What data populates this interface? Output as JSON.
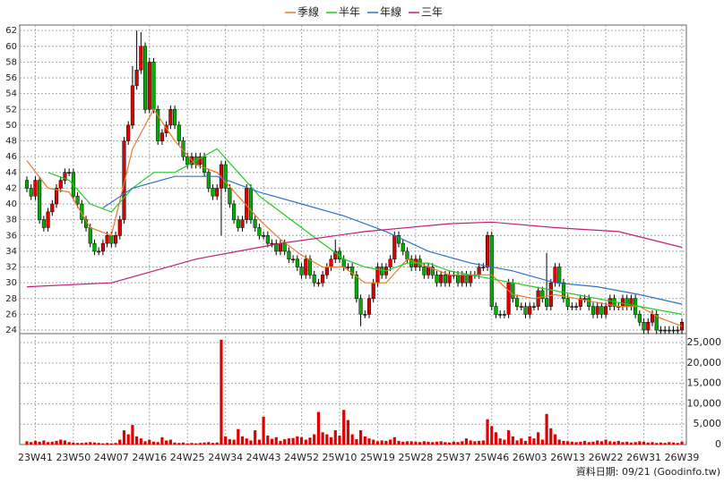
{
  "chart_data": {
    "type": "candlestick",
    "categories": [
      null,
      null,
      "23W41",
      null,
      null,
      null,
      null,
      null,
      null,
      null,
      null,
      "23W50",
      null,
      null,
      null,
      null,
      null,
      null,
      null,
      null,
      "24W07",
      null,
      null,
      null,
      null,
      null,
      null,
      null,
      null,
      "24W16",
      null,
      null,
      null,
      null,
      null,
      null,
      null,
      null,
      "24W25",
      null,
      null,
      null,
      null,
      null,
      null,
      null,
      null,
      "24W34",
      null,
      null,
      null,
      null,
      null,
      null,
      null,
      null,
      "24W43",
      null,
      null,
      null,
      null,
      null,
      null,
      null,
      null,
      "24W52",
      null,
      null,
      null,
      null,
      null,
      null,
      null,
      null,
      "25W10",
      null,
      null,
      null,
      null,
      null,
      null,
      null,
      null,
      "25W19",
      null,
      null,
      null,
      null,
      null,
      null,
      null,
      null,
      "25W28",
      null,
      null,
      null,
      null,
      null,
      null,
      null,
      null,
      "25W37",
      null,
      null,
      null,
      null,
      null,
      null,
      null,
      null,
      "25W46",
      null,
      null,
      null,
      null,
      null,
      null,
      null,
      null,
      "26W03",
      null,
      null,
      null,
      null,
      null,
      null,
      null,
      null,
      "26W13",
      null,
      null,
      null,
      null,
      null,
      null,
      null,
      null,
      "26W22",
      null,
      null,
      null,
      null,
      null,
      null,
      null,
      null,
      "26W31",
      null,
      null,
      null,
      null,
      null,
      null,
      null,
      null,
      "26W39"
    ],
    "open": [
      43,
      42,
      41,
      43,
      38,
      37,
      39,
      40,
      42,
      43,
      44,
      44,
      41,
      40,
      38,
      37,
      35,
      34,
      34,
      35,
      36,
      35,
      36,
      38,
      48,
      50,
      55,
      57,
      60,
      52,
      58,
      52,
      48,
      49,
      50,
      52,
      50,
      48,
      46,
      45,
      46,
      45,
      46,
      44,
      42,
      41,
      42,
      45,
      42,
      40,
      38,
      37,
      38,
      42,
      38,
      37,
      36,
      36,
      35,
      35,
      34,
      35,
      34,
      33,
      33,
      32,
      31,
      33,
      31,
      30,
      30,
      31,
      32,
      33,
      34,
      33,
      32,
      32,
      31,
      28,
      26,
      26,
      28,
      30,
      32,
      31,
      32,
      33,
      36,
      35,
      34,
      33,
      32,
      33,
      32,
      31,
      32,
      31,
      30,
      31,
      30,
      31,
      31,
      30,
      31,
      30,
      31,
      31,
      32,
      32,
      36,
      27,
      26,
      26,
      26,
      30,
      28,
      27,
      27,
      26,
      27,
      27,
      29,
      28,
      27,
      30,
      32,
      30,
      28,
      27,
      27,
      27,
      28,
      28,
      27,
      26,
      27,
      26,
      27,
      28,
      27,
      27,
      28,
      27,
      28,
      26,
      25,
      24,
      25,
      26,
      24,
      24,
      24,
      24,
      24,
      24
    ],
    "high": [
      43.5,
      42.5,
      43.5,
      43.5,
      38.5,
      39.5,
      40.5,
      42.5,
      43.5,
      44.5,
      44.5,
      44.5,
      41.5,
      40.5,
      38.5,
      37.5,
      35.5,
      34.5,
      35.5,
      36.5,
      36.5,
      36.5,
      38.5,
      48.5,
      50.5,
      57.5,
      62,
      61.8,
      60.5,
      58.5,
      58.5,
      52.5,
      49.5,
      50.5,
      52.5,
      52.5,
      50.5,
      48.5,
      46.5,
      46.5,
      46.5,
      46.5,
      46.5,
      44.5,
      42.5,
      42.5,
      45.5,
      45.5,
      42.5,
      40.5,
      38.5,
      38.5,
      42.5,
      42.5,
      38.5,
      37.5,
      36.5,
      36.5,
      35.5,
      35.5,
      35.5,
      35.5,
      34.5,
      33.5,
      33.5,
      32.5,
      33.5,
      33.5,
      31.5,
      30.5,
      31.5,
      32.5,
      33.5,
      35.5,
      34.5,
      33.5,
      32.5,
      32.5,
      31.5,
      28.5,
      26.5,
      28.5,
      30.5,
      32.5,
      32.5,
      32.5,
      33.5,
      36.5,
      36.5,
      35.5,
      34.5,
      33.5,
      33.5,
      33.5,
      32.5,
      32.5,
      32.5,
      31.5,
      31.5,
      31.5,
      31.5,
      31.5,
      31.5,
      31.5,
      31.5,
      31.5,
      31.5,
      32.5,
      32.5,
      36.5,
      36.5,
      27.5,
      26.5,
      26.5,
      30.5,
      30.5,
      28.5,
      27.5,
      27.5,
      27.5,
      27.5,
      29.5,
      29.5,
      33.8,
      30.5,
      32.5,
      32.5,
      30.5,
      28.5,
      27.5,
      27.5,
      28.5,
      28.5,
      28.5,
      27.5,
      27.5,
      27.5,
      27.5,
      28.5,
      28.5,
      27.5,
      28.5,
      28.5,
      28.5,
      28.5,
      26.5,
      25.5,
      25.5,
      26.5,
      26.5,
      24.5,
      24.5,
      24.5,
      24.5,
      24.5,
      25.5
    ],
    "low": [
      41.5,
      40.5,
      40.5,
      37.5,
      36.5,
      36.5,
      38.5,
      39.5,
      41.5,
      42.5,
      43.5,
      40.5,
      39.5,
      37.5,
      36.5,
      34.5,
      33.5,
      33.5,
      33.5,
      34.5,
      34.5,
      34.5,
      35.5,
      37.5,
      47.5,
      49.5,
      54.5,
      56.5,
      51.5,
      51.5,
      51.5,
      47.5,
      47.5,
      48.5,
      49.5,
      49.5,
      47.5,
      45.5,
      44.5,
      44.5,
      44.5,
      44.5,
      43.5,
      41.5,
      40.5,
      40.5,
      36,
      41.5,
      39.5,
      37.5,
      36.5,
      36.5,
      37.5,
      37.5,
      36.5,
      35.5,
      35.5,
      34.5,
      34.5,
      33.5,
      33.5,
      33.5,
      32.5,
      32.5,
      31.5,
      30.5,
      30.5,
      30.5,
      29.5,
      29.5,
      29.5,
      30.5,
      31.5,
      32.5,
      32.5,
      31.5,
      31.5,
      30.5,
      27.5,
      24.5,
      25.5,
      25.5,
      27.5,
      29.5,
      30.5,
      30.5,
      31.5,
      32.5,
      34.5,
      33.5,
      32.5,
      31.5,
      31.5,
      31.5,
      30.5,
      30.5,
      30.5,
      29.5,
      29.5,
      29.5,
      29.5,
      30.5,
      29.5,
      29.5,
      29.5,
      29.5,
      30.5,
      30.5,
      31.5,
      31.5,
      26.5,
      25.5,
      25.5,
      25.5,
      25.5,
      27.5,
      26.5,
      26.5,
      25.5,
      25.5,
      26.5,
      26.5,
      27.5,
      26.5,
      26.5,
      29.5,
      29.5,
      27.5,
      26.5,
      26.5,
      26.5,
      26.5,
      27.5,
      26.5,
      25.5,
      25.5,
      25.5,
      25.5,
      26.5,
      26.5,
      26.5,
      26.5,
      26.5,
      26.5,
      25.5,
      24.5,
      23.5,
      23.5,
      24.5,
      23.5,
      23.5,
      23.5,
      23.5,
      23.5,
      23.5,
      23.5
    ],
    "close": [
      42,
      41,
      43,
      38,
      37,
      39,
      40,
      42,
      43,
      44,
      44,
      41,
      40,
      38,
      37,
      35,
      34,
      34,
      35,
      36,
      35,
      36,
      38,
      48,
      50,
      55,
      57,
      60,
      52,
      58,
      52,
      48,
      49,
      50,
      52,
      50,
      48,
      46,
      45,
      46,
      45,
      46,
      44,
      42,
      41,
      42,
      45,
      42,
      40,
      38,
      37,
      38,
      42,
      38,
      37,
      36,
      36,
      35,
      35,
      34,
      35,
      34,
      33,
      33,
      32,
      31,
      33,
      31,
      30,
      30,
      31,
      32,
      33,
      34,
      33,
      32,
      32,
      31,
      28,
      26,
      26,
      28,
      30,
      32,
      31,
      32,
      33,
      36,
      35,
      34,
      33,
      32,
      33,
      32,
      31,
      32,
      31,
      30,
      31,
      30,
      31,
      31,
      30,
      31,
      30,
      31,
      31,
      32,
      32,
      36,
      27,
      26,
      26,
      26,
      30,
      28,
      27,
      27,
      26,
      27,
      27,
      29,
      28,
      27,
      30,
      32,
      30,
      28,
      27,
      27,
      27,
      28,
      28,
      27,
      26,
      27,
      26,
      27,
      28,
      27,
      27,
      28,
      27,
      28,
      26,
      25,
      24,
      25,
      26,
      24,
      24,
      24,
      24,
      24,
      24,
      25
    ],
    "volume": [
      800,
      600,
      900,
      700,
      1000,
      600,
      700,
      900,
      1200,
      1000,
      600,
      500,
      400,
      400,
      500,
      600,
      500,
      400,
      300,
      400,
      300,
      400,
      1200,
      3500,
      2500,
      4800,
      2000,
      1500,
      800,
      1200,
      700,
      600,
      1800,
      1000,
      1200,
      500,
      400,
      500,
      300,
      400,
      300,
      400,
      500,
      600,
      400,
      500,
      25700,
      2000,
      1300,
      1200,
      3800,
      2000,
      1500,
      1000,
      3500,
      1200,
      6800,
      2200,
      1400,
      1800,
      900,
      1300,
      1500,
      1600,
      2000,
      1800,
      1200,
      1700,
      2500,
      8000,
      3000,
      2500,
      1800,
      3500,
      2200,
      8500,
      6000,
      2500,
      1300,
      3500,
      2000,
      1500,
      1200,
      800,
      1000,
      900,
      1200,
      1800,
      900,
      700,
      800,
      800,
      700,
      600,
      800,
      700,
      600,
      700,
      800,
      600,
      500,
      700,
      600,
      800,
      1500,
      1000,
      800,
      900,
      1000,
      6200,
      4500,
      3000,
      1500,
      1200,
      3500,
      2000,
      1000,
      1500,
      900,
      2000,
      1500,
      3000,
      1200,
      7500,
      4000,
      2500,
      1200,
      900,
      800,
      700,
      600,
      700,
      900,
      600,
      700,
      1000,
      800,
      1200,
      800,
      700,
      900,
      600,
      700,
      500,
      600,
      800,
      700,
      500,
      600,
      400,
      500,
      400,
      600,
      500,
      400,
      700
    ],
    "up_color": "#e00000",
    "down_color": "#00b000",
    "volume_color": "#e00000",
    "grid": true,
    "ylim": [
      23.55,
      62.7
    ],
    "yticks": [
      24,
      26,
      28,
      30,
      32,
      34,
      36,
      38,
      40,
      42,
      44,
      46,
      48,
      50,
      52,
      54,
      56,
      58,
      60,
      62
    ],
    "y2lim": [
      0,
      27200
    ],
    "y2ticks": [
      0,
      {
        "value": 5000,
        "label": "5,000"
      },
      {
        "value": 10000,
        "label": "10,000"
      },
      {
        "value": 15000,
        "label": "15,000"
      },
      {
        "value": 20000,
        "label": "20,000"
      },
      {
        "value": 25000,
        "label": "25,000"
      }
    ],
    "lines": [
      {
        "name": "季線",
        "color": "#f07828",
        "x": [
          0,
          5,
          10,
          15,
          20,
          25,
          30,
          35,
          40,
          45,
          50,
          55,
          60,
          65,
          70,
          75,
          80,
          85,
          90,
          95,
          100,
          105,
          110,
          115,
          120,
          125,
          130,
          135,
          140,
          145,
          150,
          155
        ],
        "values": [
          45.5,
          42,
          41.5,
          37,
          36,
          47,
          52,
          48,
          45,
          44,
          41,
          38,
          35.5,
          33.5,
          32,
          32,
          30,
          30,
          33,
          32,
          31,
          31,
          31,
          28.5,
          28,
          28.5,
          28,
          27.5,
          27,
          27,
          25.5,
          24.5
        ]
      },
      {
        "name": "半年",
        "color": "#22cc22",
        "x": [
          5,
          10,
          15,
          20,
          25,
          30,
          35,
          40,
          45,
          50,
          55,
          60,
          65,
          70,
          75,
          80,
          85,
          90,
          95,
          100,
          105,
          110,
          115,
          120,
          125,
          130,
          135,
          140,
          145,
          155
        ],
        "values": [
          44,
          43,
          40,
          39,
          42,
          44,
          44,
          45.5,
          47,
          44,
          41,
          39,
          37,
          35,
          33,
          32,
          31.5,
          32.5,
          32.5,
          31.5,
          31,
          30.5,
          30,
          29.5,
          29,
          28.5,
          28,
          27.5,
          27,
          26
        ]
      },
      {
        "name": "年線",
        "color": "#3070d0",
        "x": [
          18,
          25,
          35,
          45,
          55,
          65,
          75,
          85,
          95,
          105,
          115,
          125,
          135,
          145,
          155
        ],
        "values": [
          39.5,
          42,
          43.5,
          43.5,
          41.5,
          40,
          38.5,
          36.5,
          34,
          32.5,
          31.5,
          30,
          29.5,
          28.5,
          27.3
        ]
      },
      {
        "name": "三年",
        "color": "#c0207a",
        "x": [
          0,
          20,
          40,
          60,
          80,
          100,
          110,
          125,
          140,
          155
        ],
        "values": [
          29.5,
          30,
          33,
          35,
          36.5,
          37.5,
          37.7,
          37,
          36.5,
          34.5
        ]
      }
    ],
    "footnote": "資料日期: 09/21 (Goodinfo.tw)"
  }
}
